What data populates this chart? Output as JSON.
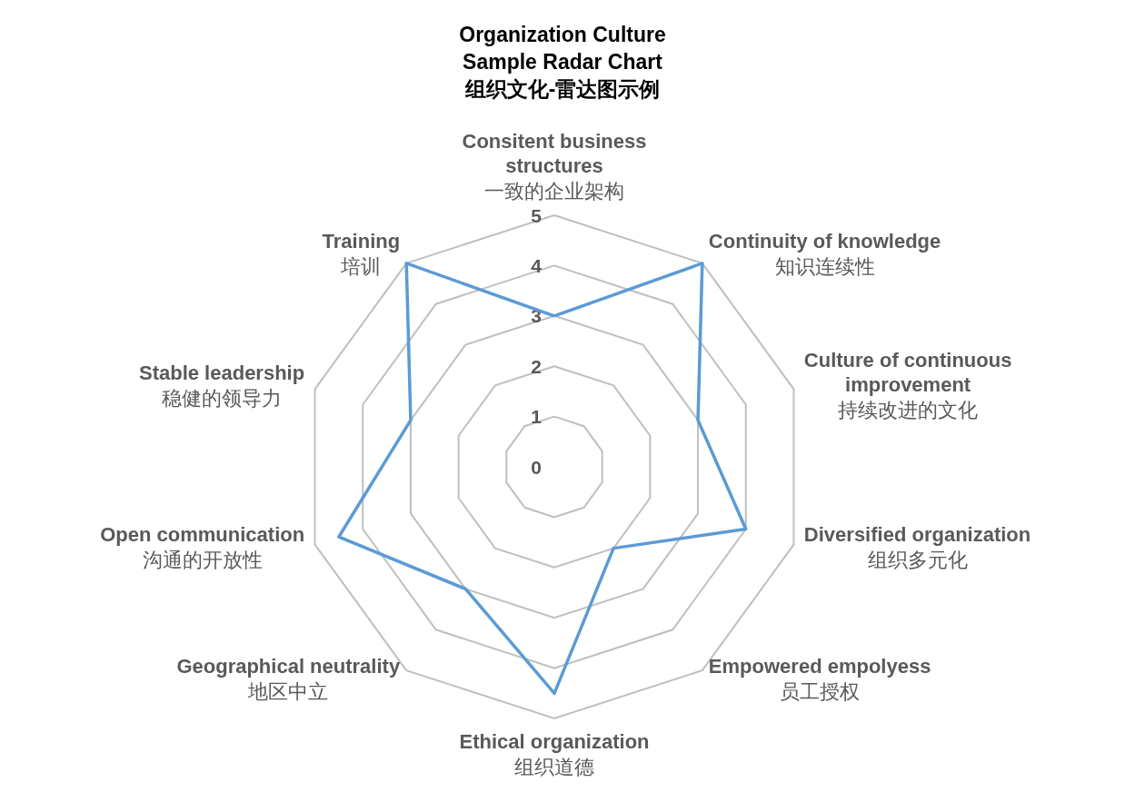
{
  "chart_data": {
    "type": "radar",
    "title": "Organization Culture\nSample Radar Chart\n组织文化-雷达图示例",
    "categories": [
      "Consitent business\nstructures\n一致的企业架构",
      "Continuity of knowledge\n知识连续性",
      "Culture of continuous\nimprovement\n持续改进的文化",
      "Diversified organization\n组织多元化",
      "Empowered empolyess\n员工授权",
      "Ethical organization\n组织道德",
      "Geographical neutrality\n地区中立",
      "Open communication\n沟通的开放性",
      "Stable leadership\n稳健的领导力",
      "Training\n培训"
    ],
    "series": [
      {
        "color": "#5b9bd5",
        "values": [
          3,
          5,
          3,
          4,
          2,
          4.5,
          3,
          4.5,
          3,
          5
        ]
      }
    ],
    "ylim": [
      0,
      5
    ],
    "yticks": [
      0,
      1,
      2,
      3,
      4,
      5
    ],
    "grid": true,
    "marker": "none",
    "line_style": "solid"
  }
}
